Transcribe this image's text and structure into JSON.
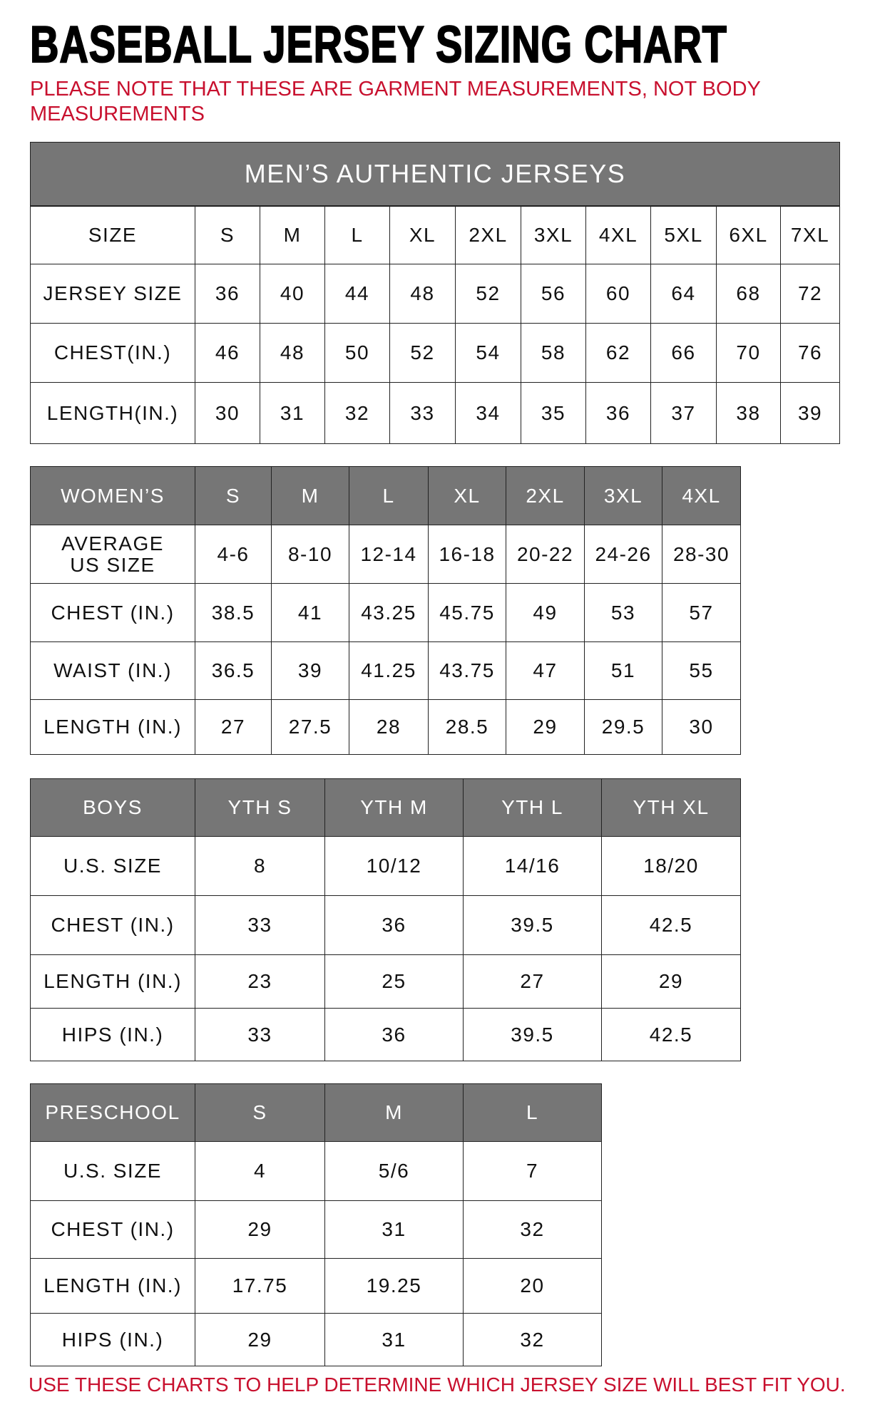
{
  "title": "BASEBALL JERSEY SIZING CHART",
  "note": "PLEASE NOTE THAT THESE ARE GARMENT MEASUREMENTS, NOT BODY MEASUREMENTS",
  "footer": "USE THESE CHARTS TO HELP DETERMINE WHICH JERSEY SIZE WILL BEST FIT YOU.",
  "colors": {
    "header_gray": "#767676",
    "note_red": "#c8102e"
  },
  "tables": [
    {
      "id": "mens",
      "band": "MEN’S AUTHENTIC JERSEYS",
      "header": [
        "SIZE",
        "S",
        "M",
        "L",
        "XL",
        "2XL",
        "3XL",
        "4XL",
        "5XL",
        "6XL",
        "7XL"
      ],
      "rows": [
        [
          "JERSEY SIZE",
          "36",
          "40",
          "44",
          "48",
          "52",
          "56",
          "60",
          "64",
          "68",
          "72"
        ],
        [
          "CHEST(IN.)",
          "46",
          "48",
          "50",
          "52",
          "54",
          "58",
          "62",
          "66",
          "70",
          "76"
        ],
        [
          "LENGTH(IN.)",
          "30",
          "31",
          "32",
          "33",
          "34",
          "35",
          "36",
          "37",
          "38",
          "39"
        ]
      ]
    },
    {
      "id": "womens",
      "header": [
        "WOMEN’S",
        "S",
        "M",
        "L",
        "XL",
        "2XL",
        "3XL",
        "4XL"
      ],
      "rows": [
        [
          "AVERAGE US SIZE",
          "4-6",
          "8-10",
          "12-14",
          "16-18",
          "20-22",
          "24-26",
          "28-30"
        ],
        [
          "CHEST (IN.)",
          "38.5",
          "41",
          "43.25",
          "45.75",
          "49",
          "53",
          "57"
        ],
        [
          "WAIST (IN.)",
          "36.5",
          "39",
          "41.25",
          "43.75",
          "47",
          "51",
          "55"
        ],
        [
          "LENGTH (IN.)",
          "27",
          "27.5",
          "28",
          "28.5",
          "29",
          "29.5",
          "30"
        ]
      ]
    },
    {
      "id": "boys",
      "header": [
        "BOYS",
        "YTH S",
        "YTH M",
        "YTH L",
        "YTH XL"
      ],
      "rows": [
        [
          "U.S. SIZE",
          "8",
          "10/12",
          "14/16",
          "18/20"
        ],
        [
          "CHEST (IN.)",
          "33",
          "36",
          "39.5",
          "42.5"
        ],
        [
          "LENGTH (IN.)",
          "23",
          "25",
          "27",
          "29"
        ],
        [
          "HIPS (IN.)",
          "33",
          "36",
          "39.5",
          "42.5"
        ]
      ]
    },
    {
      "id": "preschool",
      "header": [
        "PRESCHOOL",
        "S",
        "M",
        "L"
      ],
      "rows": [
        [
          "U.S. SIZE",
          "4",
          "5/6",
          "7"
        ],
        [
          "CHEST (IN.)",
          "29",
          "31",
          "32"
        ],
        [
          "LENGTH (IN.)",
          "17.75",
          "19.25",
          "20"
        ],
        [
          "HIPS (IN.)",
          "29",
          "31",
          "32"
        ]
      ]
    }
  ]
}
